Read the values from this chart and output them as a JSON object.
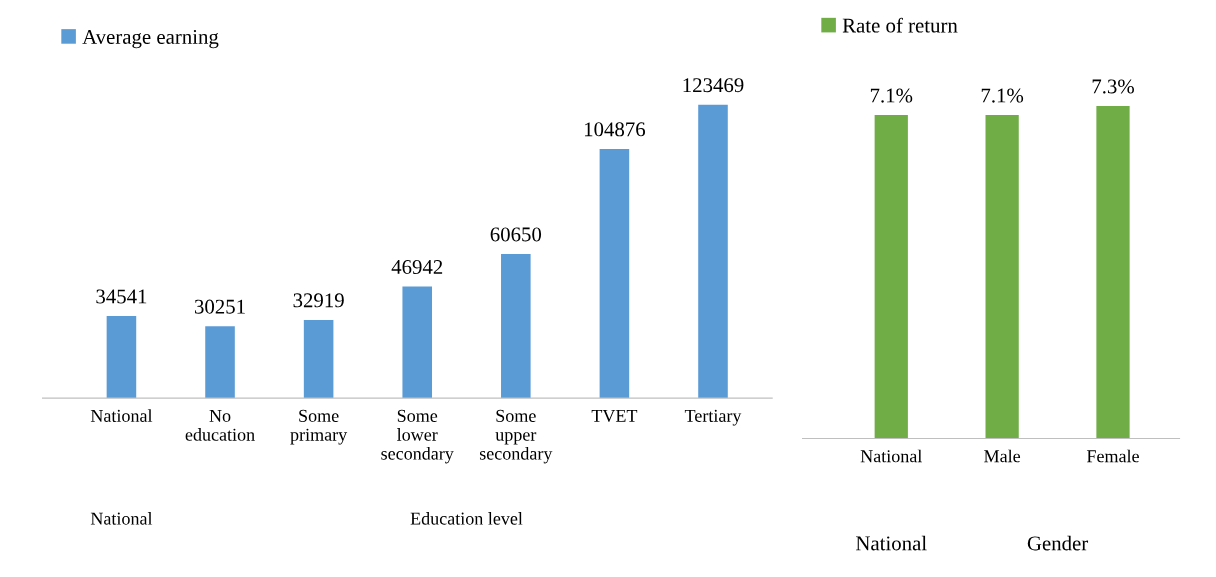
{
  "chart_data": [
    {
      "type": "bar",
      "categories": [
        "National",
        "No\neducation",
        "Some\nprimary",
        "Some\nlower\nsecondary",
        "Some\nupper\nsecondary",
        "TVET",
        "Tertiary"
      ],
      "series": [
        {
          "name": "Average earning",
          "color": "#5b9bd5",
          "values": [
            34541,
            30251,
            32919,
            46942,
            60650,
            104876,
            123469
          ]
        }
      ],
      "data_labels": true,
      "legend": "top left",
      "annotations": [
        "National",
        "Education level"
      ]
    },
    {
      "type": "bar",
      "categories": [
        "National",
        "Male",
        "Female"
      ],
      "series": [
        {
          "name": "Rate of return",
          "color": "#70ad47",
          "values": [
            7.1,
            7.1,
            7.3
          ],
          "value_labels": [
            "7.1%",
            "7.1%",
            "7.3%"
          ]
        }
      ],
      "tick_labels": "x",
      "legend": "top left",
      "annotations": [
        "National",
        "Gender"
      ]
    }
  ]
}
